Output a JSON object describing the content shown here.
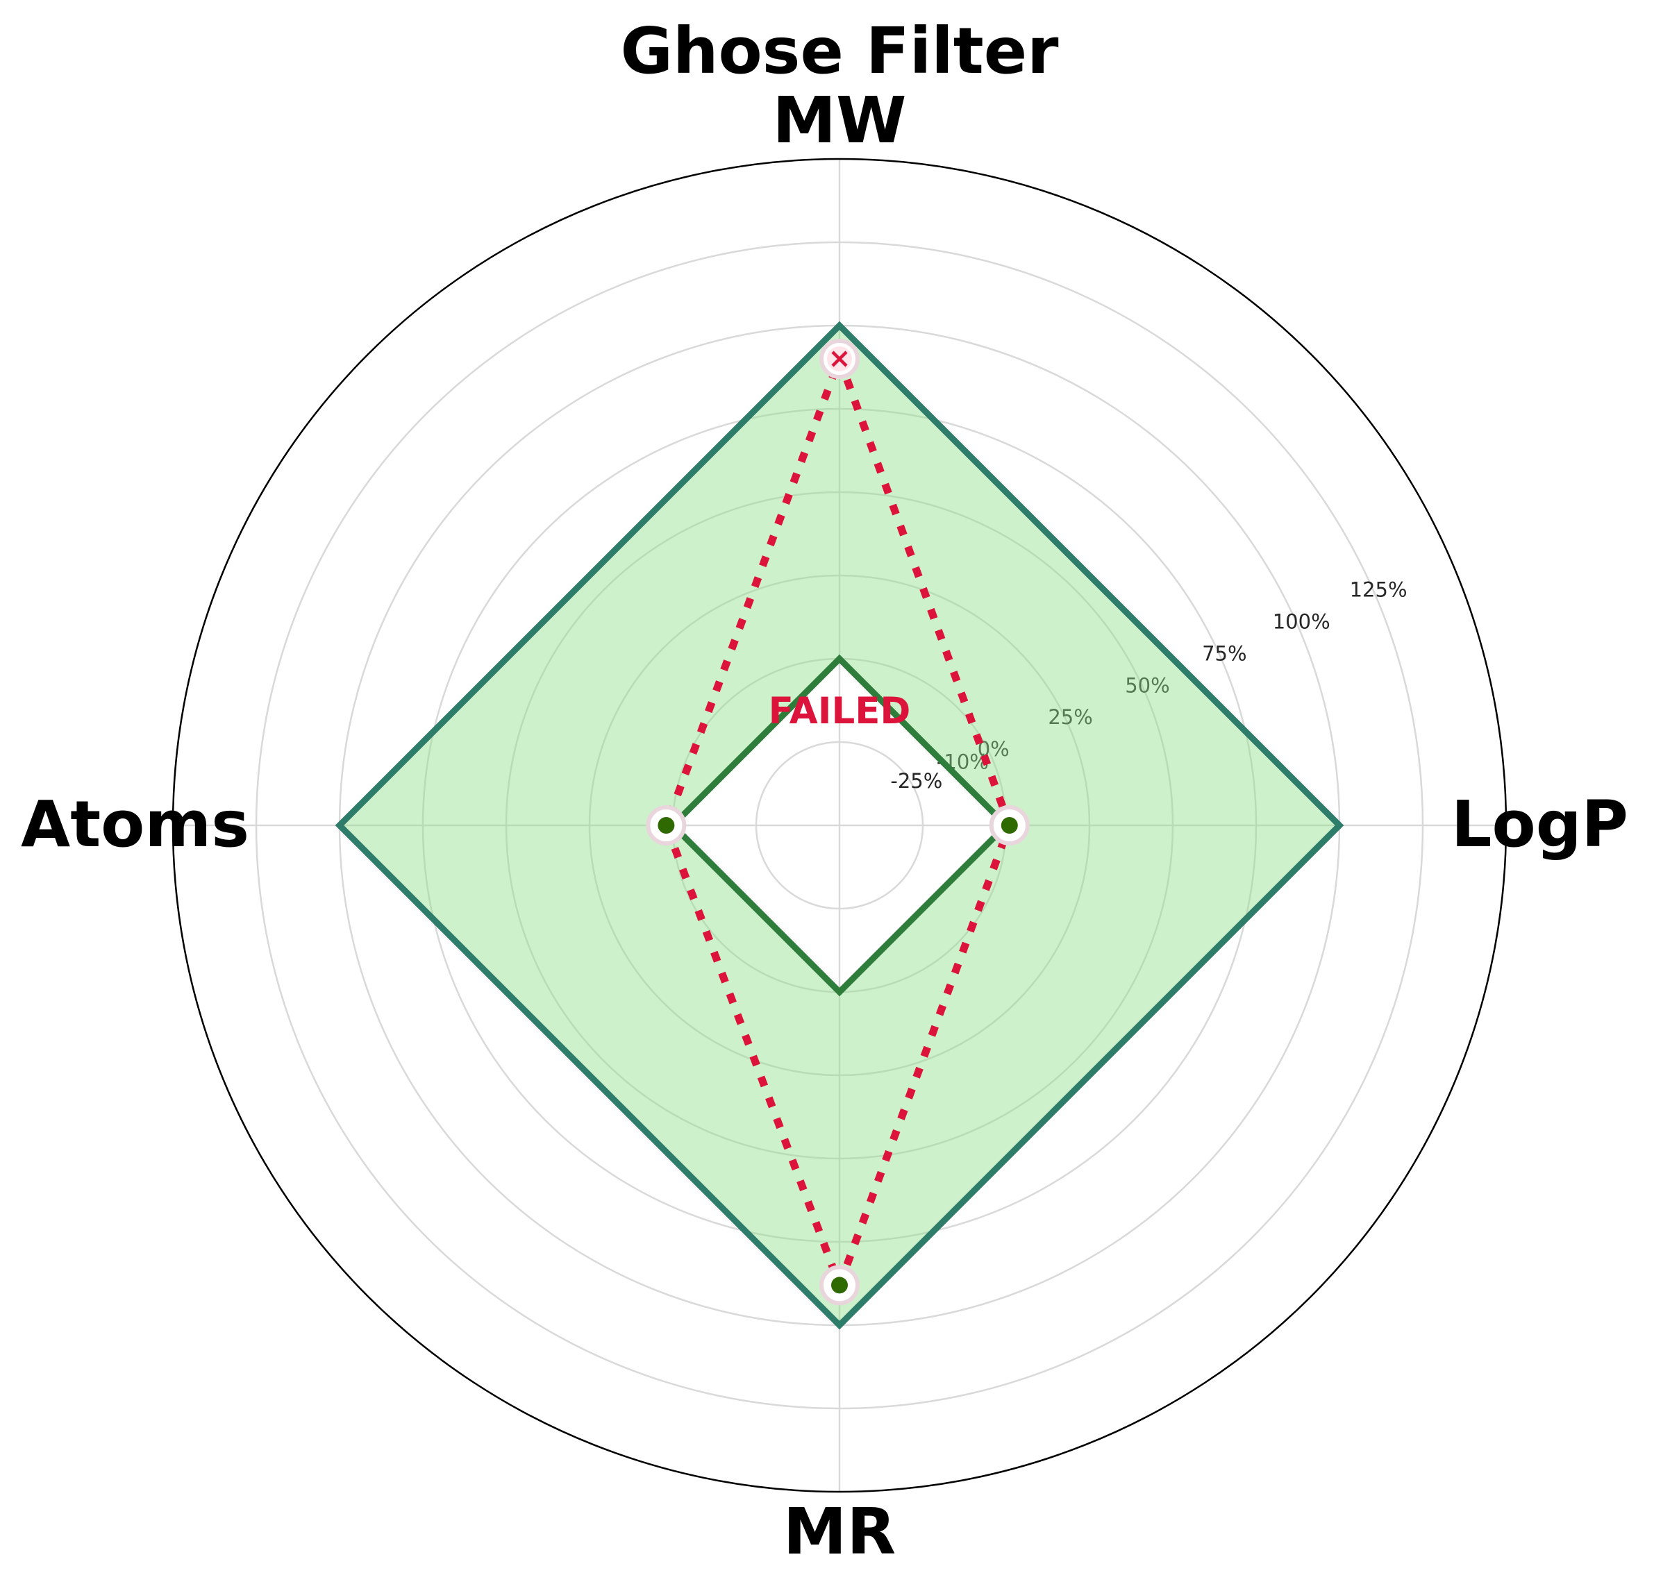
{
  "chart_data": {
    "type": "radar",
    "title": "Ghose Filter",
    "axes": [
      "MW",
      "LogP",
      "MR",
      "Atoms"
    ],
    "rlim": [
      -50,
      150
    ],
    "radial_ticks": [
      -25,
      -10,
      0,
      25,
      50,
      75,
      100,
      125
    ],
    "radial_tick_labels": [
      "-25%",
      "-10%",
      "0%",
      "25%",
      "50%",
      "75%",
      "100%",
      "125%"
    ],
    "grid": true,
    "series": [
      {
        "role": "upper_bound",
        "values": [
          100,
          100,
          100,
          100
        ],
        "color": "#2e7d6b",
        "fill": "#90e08a"
      },
      {
        "role": "lower_bound",
        "values": [
          0,
          0,
          0,
          0
        ],
        "color": "#2f7d3a"
      },
      {
        "role": "compound",
        "values": [
          90,
          1,
          88,
          2
        ],
        "color": "#dc143c",
        "style": "dotted"
      }
    ],
    "point_status": [
      "fail",
      "pass",
      "pass",
      "pass"
    ],
    "status_label": "FAILED",
    "status_color": "#dc143c",
    "pass_marker_color": "#2e6a00",
    "fail_marker_color": "#dc143c"
  }
}
